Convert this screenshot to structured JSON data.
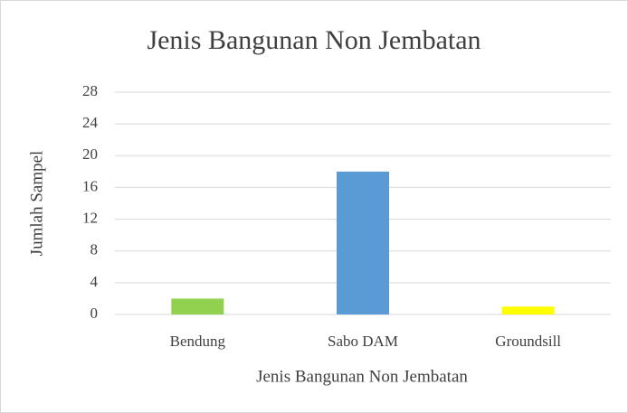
{
  "chart_data": {
    "type": "bar",
    "title": "Jenis Bangunan Non Jembatan",
    "x_label": "Jenis Bangunan Non Jembatan",
    "y_label": "Jumlah Sampel",
    "categories": [
      "Bendung",
      "Sabo DAM",
      "Groundsill"
    ],
    "values": [
      2,
      18,
      1
    ],
    "colors": [
      "#92d050",
      "#5b9bd5",
      "#ffff00"
    ],
    "ylim": [
      0,
      28
    ],
    "yticks": [
      0,
      4,
      8,
      12,
      16,
      20,
      24,
      28
    ],
    "grid": true
  }
}
